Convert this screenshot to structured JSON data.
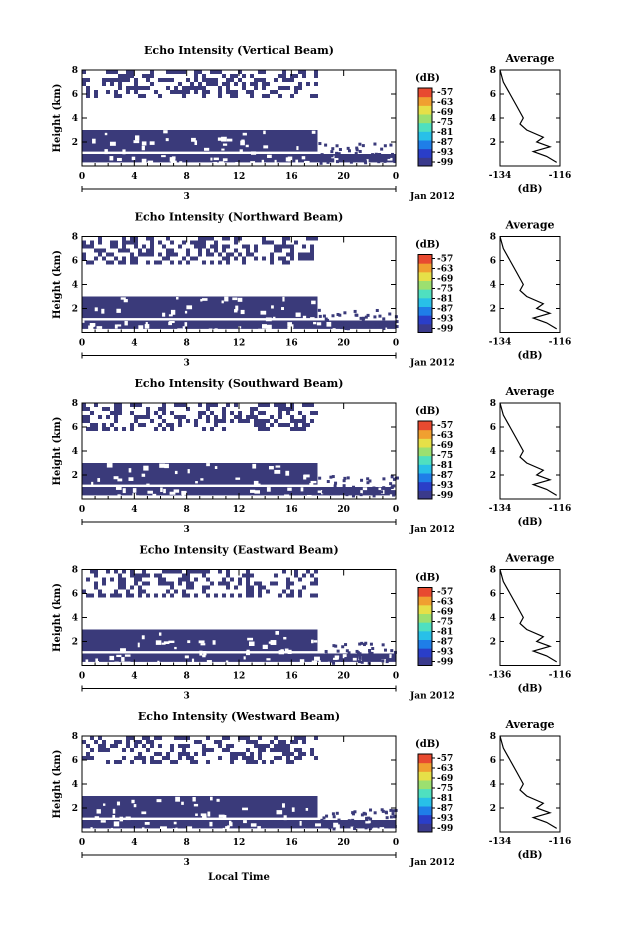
{
  "colors": {
    "echo": "#3a3a7a",
    "colorbar": [
      "#3a3a8c",
      "#2a3ec8",
      "#1f7ee8",
      "#28c0e8",
      "#4fe0c0",
      "#9ce070",
      "#e6e048",
      "#f0a030",
      "#e84a30"
    ]
  },
  "panels": [
    {
      "title": "Echo Intensity (Vertical Beam)",
      "avg_xticks": [
        "-134",
        "-116"
      ]
    },
    {
      "title": "Echo Intensity (Northward Beam)",
      "avg_xticks": [
        "-134",
        "-116"
      ]
    },
    {
      "title": "Echo Intensity (Southward Beam)",
      "avg_xticks": [
        "-134",
        "-116"
      ]
    },
    {
      "title": "Echo Intensity (Eastward Beam)",
      "avg_xticks": [
        "-136",
        "-116"
      ]
    },
    {
      "title": "Echo Intensity (Westward Beam)",
      "avg_xticks": [
        "-134",
        "-116"
      ]
    }
  ],
  "common": {
    "ylabel": "Height (km)",
    "yticks": [
      "2",
      "4",
      "6",
      "8"
    ],
    "xticks": [
      "0",
      "4",
      "8",
      "12",
      "16",
      "20",
      "0"
    ],
    "date_day": "3",
    "date_label": "Jan 2012",
    "colorbar_unit": "(dB)",
    "colorbar_ticks": [
      "-57",
      "-63",
      "-69",
      "-75",
      "-81",
      "-87",
      "-93",
      "-99"
    ],
    "avg_title": "Average",
    "avg_yticks": [
      "2",
      "4",
      "6",
      "8"
    ],
    "avg_xlabel": "(dB)",
    "xlabel": "Local Time"
  },
  "chart_data": {
    "type": "heatmap",
    "x_unit": "local time (hour)",
    "xlim": [
      0,
      24
    ],
    "ylim": [
      0,
      8
    ],
    "clim": [
      -99,
      -57
    ],
    "layers": [
      {
        "height_range_km": [
          0.3,
          1.0
        ],
        "hours": [
          0,
          24
        ]
      },
      {
        "height_range_km": [
          1.2,
          3.0
        ],
        "hours": [
          0,
          18
        ]
      },
      {
        "height_range_km": [
          5.8,
          8.0
        ],
        "hours": [
          0,
          18
        ],
        "coverage": "sparse"
      }
    ],
    "average_profile": {
      "xlim": [
        -134,
        -116
      ],
      "height_km": [
        0.3,
        0.8,
        1.2,
        1.6,
        2.0,
        2.4,
        3.0,
        3.5,
        4.0,
        5.0,
        6.0,
        7.0,
        8.0
      ],
      "db": [
        -117,
        -120,
        -124,
        -119,
        -123,
        -121,
        -126,
        -128,
        -127,
        -129,
        -131,
        -133,
        -134
      ]
    }
  }
}
